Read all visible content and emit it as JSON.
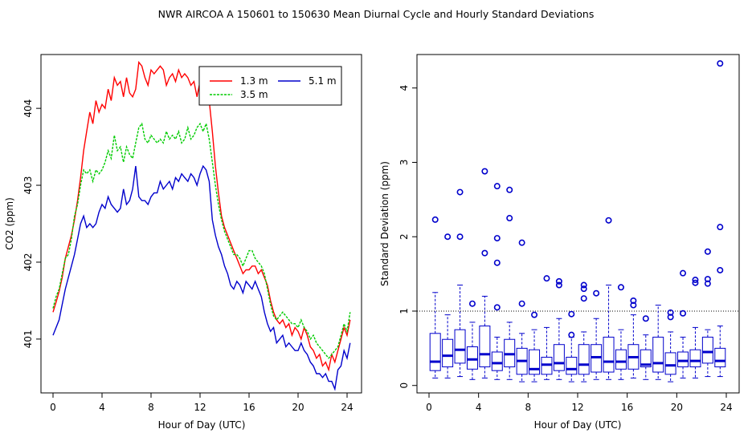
{
  "title": "NWR   AIRCOA A   150601 to 150630   Mean Diurnal Cycle and Hourly Standard Deviations",
  "chart_data": [
    {
      "type": "line",
      "title": "",
      "xlabel": "Hour of Day (UTC)",
      "ylabel": "CO2 (ppm)",
      "xlim": [
        0,
        24
      ],
      "ylim": [
        400.3,
        404.7
      ],
      "xticks": [
        0,
        4,
        8,
        12,
        16,
        20,
        24
      ],
      "yticks": [
        401,
        402,
        403,
        404
      ],
      "legend": {
        "placement": "top-right",
        "order": [
          "1.3 m",
          "5.1 m",
          "3.5 m"
        ]
      },
      "series": [
        {
          "name": "1.3 m",
          "color": "#ff0000",
          "x_start": 0,
          "x_step": 0.25,
          "values": [
            401.35,
            401.48,
            401.62,
            401.8,
            402.05,
            402.2,
            402.35,
            402.55,
            402.8,
            403.1,
            403.45,
            403.7,
            403.95,
            403.8,
            404.1,
            403.95,
            404.05,
            404.0,
            404.25,
            404.1,
            404.4,
            404.3,
            404.35,
            404.15,
            404.4,
            404.2,
            404.15,
            404.25,
            404.6,
            404.55,
            404.4,
            404.3,
            404.5,
            404.45,
            404.5,
            404.55,
            404.5,
            404.3,
            404.4,
            404.45,
            404.35,
            404.5,
            404.4,
            404.45,
            404.4,
            404.3,
            404.35,
            404.15,
            404.35,
            404.3,
            404.35,
            404.1,
            403.7,
            403.25,
            402.9,
            402.6,
            402.45,
            402.35,
            402.25,
            402.15,
            402.05,
            401.95,
            401.85,
            401.9,
            401.9,
            401.95,
            401.95,
            401.85,
            401.9,
            401.8,
            401.7,
            401.5,
            401.35,
            401.25,
            401.2,
            401.25,
            401.15,
            401.2,
            401.05,
            401.15,
            401.1,
            401.0,
            401.15,
            401.05,
            400.9,
            400.85,
            400.75,
            400.8,
            400.65,
            400.7,
            400.6,
            400.8,
            400.7,
            400.85,
            401.0,
            401.15,
            401.05,
            401.25
          ]
        },
        {
          "name": "3.5 m",
          "color": "#00cc00",
          "x_start": 0,
          "x_step": 0.25,
          "values": [
            401.4,
            401.55,
            401.65,
            401.85,
            402.05,
            402.1,
            402.3,
            402.6,
            402.75,
            403.0,
            403.2,
            403.15,
            403.2,
            403.05,
            403.2,
            403.15,
            403.2,
            403.3,
            403.45,
            403.35,
            403.65,
            403.45,
            403.5,
            403.3,
            403.5,
            403.4,
            403.35,
            403.55,
            403.75,
            403.8,
            403.6,
            403.55,
            403.65,
            403.6,
            403.55,
            403.6,
            403.55,
            403.7,
            403.6,
            403.65,
            403.6,
            403.7,
            403.55,
            403.6,
            403.75,
            403.6,
            403.65,
            403.75,
            403.8,
            403.7,
            403.8,
            403.6,
            403.3,
            403.0,
            402.75,
            402.55,
            402.4,
            402.3,
            402.2,
            402.1,
            402.1,
            402.05,
            401.95,
            402.05,
            402.15,
            402.15,
            402.05,
            402.0,
            401.95,
            401.85,
            401.65,
            401.45,
            401.3,
            401.25,
            401.3,
            401.35,
            401.3,
            401.25,
            401.2,
            401.2,
            401.15,
            401.25,
            401.15,
            401.1,
            401.0,
            401.05,
            400.95,
            400.9,
            400.85,
            400.8,
            400.75,
            400.8,
            400.85,
            400.9,
            401.05,
            401.2,
            401.1,
            401.35
          ]
        },
        {
          "name": "5.1 m",
          "color": "#0000cc",
          "x_start": 0,
          "x_step": 0.25,
          "values": [
            401.05,
            401.15,
            401.25,
            401.45,
            401.65,
            401.8,
            401.95,
            402.1,
            402.3,
            402.5,
            402.6,
            402.45,
            402.5,
            402.45,
            402.5,
            402.65,
            402.75,
            402.7,
            402.85,
            402.75,
            402.7,
            402.65,
            402.7,
            402.95,
            402.75,
            402.8,
            402.95,
            403.25,
            402.85,
            402.8,
            402.8,
            402.75,
            402.85,
            402.9,
            402.9,
            403.05,
            402.95,
            403.0,
            403.05,
            402.95,
            403.1,
            403.05,
            403.15,
            403.1,
            403.05,
            403.15,
            403.1,
            403.0,
            403.15,
            403.25,
            403.2,
            403.05,
            402.55,
            402.35,
            402.2,
            402.1,
            401.95,
            401.85,
            401.7,
            401.65,
            401.75,
            401.7,
            401.6,
            401.75,
            401.7,
            401.65,
            401.75,
            401.65,
            401.55,
            401.35,
            401.2,
            401.1,
            401.15,
            400.95,
            401.0,
            401.05,
            400.9,
            400.95,
            400.9,
            400.85,
            400.85,
            400.95,
            400.85,
            400.8,
            400.7,
            400.65,
            400.55,
            400.55,
            400.5,
            400.55,
            400.45,
            400.45,
            400.35,
            400.6,
            400.65,
            400.85,
            400.75,
            400.95
          ]
        }
      ]
    },
    {
      "type": "box",
      "title": "",
      "xlabel": "Hour of Day (UTC)",
      "ylabel": "Standard Deviation (ppm)",
      "xlim": [
        0,
        24
      ],
      "ylim": [
        -0.1,
        4.45
      ],
      "xticks": [
        0,
        4,
        8,
        12,
        16,
        20,
        24
      ],
      "yticks": [
        0,
        1,
        2,
        3,
        4
      ],
      "reference_line": 1,
      "color": "#0000cc",
      "boxes": [
        {
          "x": 0.5,
          "low": 0.1,
          "q1": 0.2,
          "median": 0.32,
          "q3": 0.7,
          "high": 1.25,
          "outliers": [
            2.23
          ]
        },
        {
          "x": 1.5,
          "low": 0.1,
          "q1": 0.25,
          "median": 0.4,
          "q3": 0.62,
          "high": 0.95,
          "outliers": [
            2.0
          ]
        },
        {
          "x": 2.5,
          "low": 0.12,
          "q1": 0.3,
          "median": 0.48,
          "q3": 0.75,
          "high": 1.35,
          "outliers": [
            2.0,
            2.6
          ]
        },
        {
          "x": 3.5,
          "low": 0.08,
          "q1": 0.22,
          "median": 0.35,
          "q3": 0.52,
          "high": 0.85,
          "outliers": [
            1.1
          ]
        },
        {
          "x": 4.5,
          "low": 0.1,
          "q1": 0.25,
          "median": 0.42,
          "q3": 0.8,
          "high": 1.2,
          "outliers": [
            1.78,
            2.88
          ]
        },
        {
          "x": 5.5,
          "low": 0.08,
          "q1": 0.2,
          "median": 0.3,
          "q3": 0.45,
          "high": 0.65,
          "outliers": [
            1.05,
            1.65,
            1.98,
            2.68
          ]
        },
        {
          "x": 6.5,
          "low": 0.08,
          "q1": 0.25,
          "median": 0.42,
          "q3": 0.62,
          "high": 0.85,
          "outliers": [
            2.25,
            2.63
          ]
        },
        {
          "x": 7.5,
          "low": 0.05,
          "q1": 0.15,
          "median": 0.33,
          "q3": 0.5,
          "high": 0.7,
          "outliers": [
            1.1,
            1.92
          ]
        },
        {
          "x": 8.5,
          "low": 0.05,
          "q1": 0.15,
          "median": 0.22,
          "q3": 0.48,
          "high": 0.75,
          "outliers": [
            0.95
          ]
        },
        {
          "x": 9.5,
          "low": 0.08,
          "q1": 0.15,
          "median": 0.28,
          "q3": 0.38,
          "high": 0.78,
          "outliers": [
            1.44
          ]
        },
        {
          "x": 10.5,
          "low": 0.08,
          "q1": 0.2,
          "median": 0.3,
          "q3": 0.55,
          "high": 0.9,
          "outliers": [
            1.35,
            1.4
          ]
        },
        {
          "x": 11.5,
          "low": 0.05,
          "q1": 0.15,
          "median": 0.22,
          "q3": 0.38,
          "high": 0.65,
          "outliers": [
            0.68,
            0.96
          ]
        },
        {
          "x": 12.5,
          "low": 0.05,
          "q1": 0.15,
          "median": 0.28,
          "q3": 0.55,
          "high": 0.72,
          "outliers": [
            1.17,
            1.3,
            1.35
          ]
        },
        {
          "x": 13.5,
          "low": 0.08,
          "q1": 0.18,
          "median": 0.38,
          "q3": 0.55,
          "high": 0.9,
          "outliers": [
            1.24
          ]
        },
        {
          "x": 14.5,
          "low": 0.08,
          "q1": 0.18,
          "median": 0.32,
          "q3": 0.65,
          "high": 1.35,
          "outliers": [
            2.22
          ]
        },
        {
          "x": 15.5,
          "low": 0.08,
          "q1": 0.22,
          "median": 0.32,
          "q3": 0.48,
          "high": 0.75,
          "outliers": [
            1.32
          ]
        },
        {
          "x": 16.5,
          "low": 0.1,
          "q1": 0.22,
          "median": 0.38,
          "q3": 0.55,
          "high": 0.95,
          "outliers": [
            1.08,
            1.14
          ]
        },
        {
          "x": 17.5,
          "low": 0.08,
          "q1": 0.25,
          "median": 0.28,
          "q3": 0.48,
          "high": 0.68,
          "outliers": [
            0.9
          ]
        },
        {
          "x": 18.5,
          "low": 0.08,
          "q1": 0.18,
          "median": 0.3,
          "q3": 0.65,
          "high": 1.08,
          "outliers": []
        },
        {
          "x": 19.5,
          "low": 0.05,
          "q1": 0.15,
          "median": 0.27,
          "q3": 0.44,
          "high": 0.72,
          "outliers": [
            0.92,
            0.98
          ]
        },
        {
          "x": 20.5,
          "low": 0.1,
          "q1": 0.25,
          "median": 0.33,
          "q3": 0.45,
          "high": 0.65,
          "outliers": [
            0.97,
            1.51
          ]
        },
        {
          "x": 21.5,
          "low": 0.1,
          "q1": 0.25,
          "median": 0.33,
          "q3": 0.48,
          "high": 0.78,
          "outliers": [
            1.38,
            1.42
          ]
        },
        {
          "x": 22.5,
          "low": 0.12,
          "q1": 0.3,
          "median": 0.45,
          "q3": 0.65,
          "high": 0.75,
          "outliers": [
            1.37,
            1.43,
            1.8
          ]
        },
        {
          "x": 23.5,
          "low": 0.12,
          "q1": 0.25,
          "median": 0.33,
          "q3": 0.5,
          "high": 0.8,
          "outliers": [
            1.55,
            2.13,
            4.33
          ]
        }
      ]
    }
  ]
}
